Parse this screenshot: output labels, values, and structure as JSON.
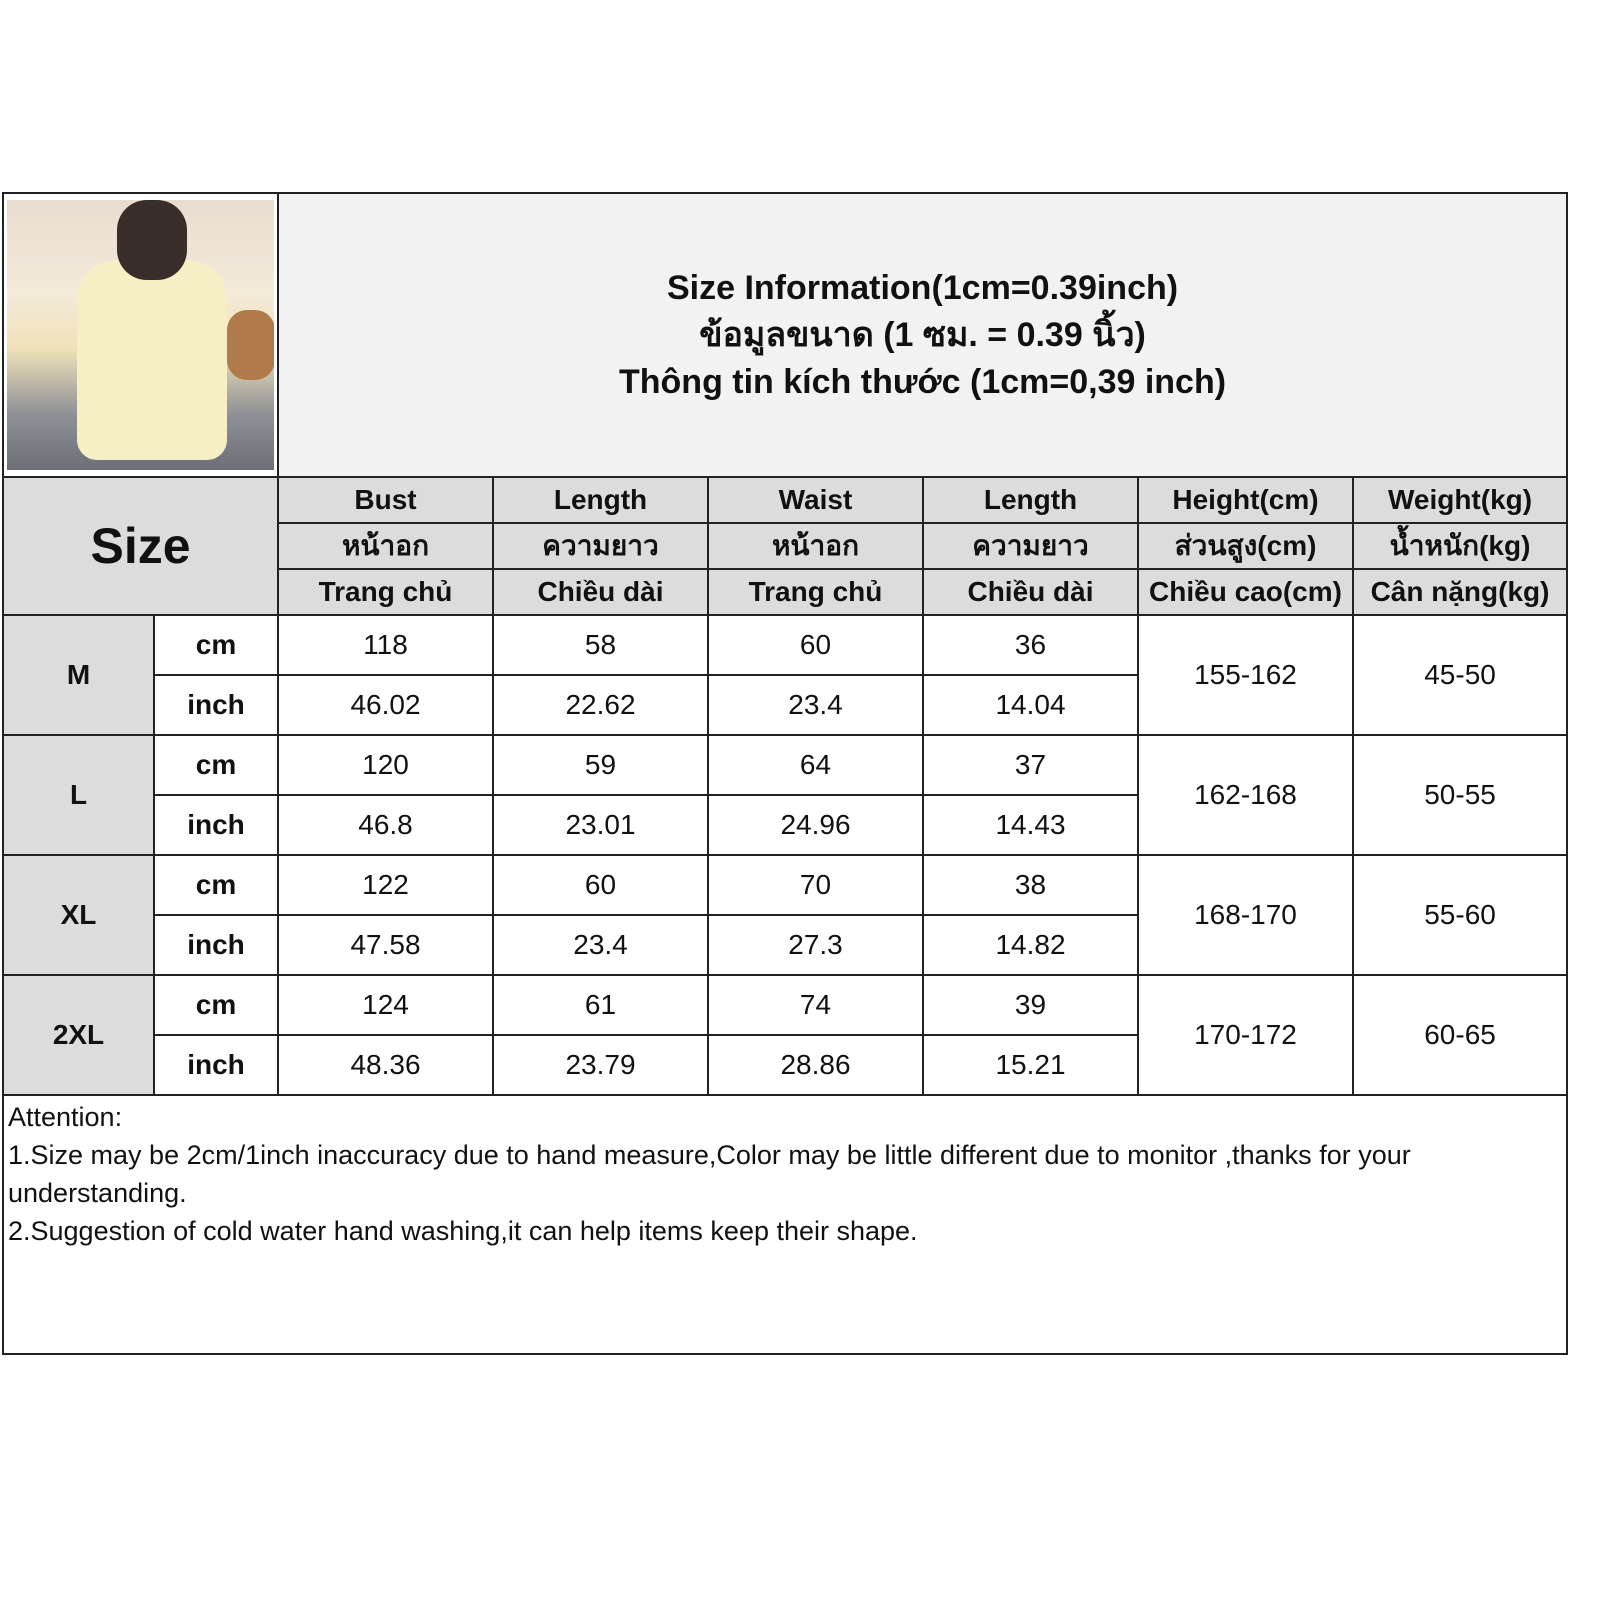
{
  "title": [
    "Size Information(1cm=0.39inch)",
    "ข้อมูลขนาด (1 ซม. = 0.39 นิ้ว)",
    "Thông tin kích thước (1cm=0,39 inch)"
  ],
  "size_label": "Size",
  "columns": [
    {
      "en": "Bust",
      "th": "หน้าอก",
      "vi": "Trang chủ"
    },
    {
      "en": "Length",
      "th": "ความยาว",
      "vi": "Chiều dài"
    },
    {
      "en": "Waist",
      "th": "หน้าอก",
      "vi": "Trang chủ"
    },
    {
      "en": "Length",
      "th": "ความยาว",
      "vi": "Chiều dài"
    },
    {
      "en": "Height(cm)",
      "th": "ส่วนสูง(cm)",
      "vi": "Chiều cao(cm)"
    },
    {
      "en": "Weight(kg)",
      "th": "น้ำหนัก(kg)",
      "vi": "Cân nặng(kg)"
    }
  ],
  "units": {
    "cm": "cm",
    "inch": "inch"
  },
  "rows": [
    {
      "size": "M",
      "cm": [
        "118",
        "58",
        "60",
        "36"
      ],
      "inch": [
        "46.02",
        "22.62",
        "23.4",
        "14.04"
      ],
      "height": "155-162",
      "weight": "45-50"
    },
    {
      "size": "L",
      "cm": [
        "120",
        "59",
        "64",
        "37"
      ],
      "inch": [
        "46.8",
        "23.01",
        "24.96",
        "14.43"
      ],
      "height": "162-168",
      "weight": "50-55"
    },
    {
      "size": "XL",
      "cm": [
        "122",
        "60",
        "70",
        "38"
      ],
      "inch": [
        "47.58",
        "23.4",
        "27.3",
        "14.82"
      ],
      "height": "168-170",
      "weight": "55-60"
    },
    {
      "size": "2XL",
      "cm": [
        "124",
        "61",
        "74",
        "39"
      ],
      "inch": [
        "48.36",
        "23.79",
        "28.86",
        "15.21"
      ],
      "height": "170-172",
      "weight": "60-65"
    }
  ],
  "attention": [
    "Attention:",
    "1.Size may be 2cm/1inch inaccuracy due to hand measure,Color may be little different due to monitor ,thanks for your understanding.",
    "2.Suggestion of cold water hand washing,it can help items keep their shape."
  ]
}
